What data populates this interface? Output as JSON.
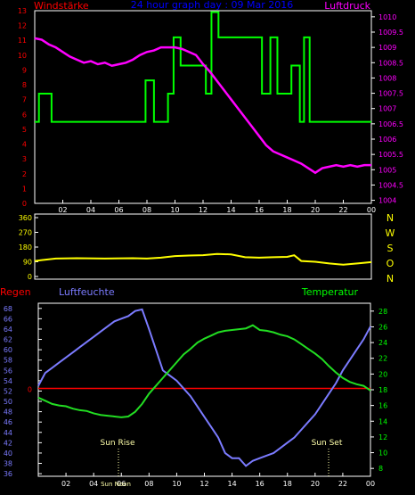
{
  "header": {
    "left": "Windstärke",
    "center": "24 hour graph day : 09 Mar 2016",
    "right": "Luftdruck"
  },
  "lower_header": {
    "left": "Regen",
    "center": "Luftfeuchte",
    "right": "Temperatur"
  },
  "markers": {
    "sunrise": "Sun Rise",
    "sunset": "Sun Set",
    "noon": "Sun Noon"
  },
  "colors": {
    "background": "#000000",
    "axis": "#ffffff",
    "wind": "#00ff00",
    "pressure": "#ff00ff",
    "direction": "#ffff00",
    "humidity": "#7b7bff",
    "temperature": "#22dd22",
    "rain": "#ff0000",
    "header": "#ff0000",
    "header_center": "#0000ff",
    "right_label": "#ff00ff",
    "dir_letters": "#ffff00",
    "hum_ticks": "#7b7bff",
    "temp_ticks": "#00ff00"
  },
  "chart_data": [
    {
      "type": "line",
      "title": "24 hour graph day : 09 Mar 2016",
      "x_ticks": [
        "02",
        "04",
        "06",
        "08",
        "10",
        "12",
        "14",
        "16",
        "18",
        "20",
        "22",
        "00"
      ],
      "xlim": [
        0,
        24
      ],
      "y_left": {
        "label": "Windstärke",
        "ticks": [
          "0",
          "1",
          "2",
          "3",
          "4",
          "5",
          "6",
          "7",
          "8",
          "9",
          "10",
          "11",
          "12",
          "13"
        ],
        "ylim": [
          0,
          13
        ]
      },
      "y_right": {
        "label": "Luftdruck",
        "ticks": [
          "1004",
          "1004.5",
          "1005",
          "1005.5",
          "1006",
          "1006.5",
          "1007",
          "1007.5",
          "1008",
          "1008.5",
          "1009",
          "1009.5",
          "1010"
        ],
        "ylim": [
          1003.9,
          1010.2
        ]
      },
      "series": [
        {
          "name": "Windstärke",
          "axis": "left",
          "step": true,
          "x": [
            0.0,
            0.3,
            1.2,
            4.9,
            7.9,
            8.5,
            9.5,
            9.9,
            10.4,
            11.3,
            12.2,
            12.6,
            13.1,
            13.5,
            16.2,
            16.8,
            17.3,
            18.3,
            18.9,
            19.2,
            19.6,
            20.0,
            24.0
          ],
          "y": [
            5.5,
            7.4,
            5.5,
            5.5,
            8.3,
            5.5,
            7.4,
            11.2,
            9.3,
            9.3,
            7.4,
            12.9,
            11.2,
            11.2,
            7.4,
            11.2,
            7.4,
            9.3,
            5.5,
            11.2,
            5.5,
            5.5,
            5.5
          ]
        },
        {
          "name": "Luftdruck",
          "axis": "right",
          "x": [
            0.0,
            0.5,
            1.0,
            1.5,
            2.0,
            2.5,
            3.0,
            3.5,
            4.0,
            4.5,
            5.0,
            5.5,
            6.0,
            6.5,
            7.0,
            7.5,
            8.0,
            8.5,
            9.0,
            9.5,
            10.0,
            10.5,
            11.0,
            11.5,
            12.0,
            12.5,
            13.0,
            13.5,
            14.0,
            14.5,
            15.0,
            15.5,
            16.0,
            16.5,
            17.0,
            17.5,
            18.0,
            18.5,
            19.0,
            19.5,
            20.0,
            20.5,
            21.0,
            21.5,
            22.0,
            22.5,
            23.0,
            23.5,
            24.0
          ],
          "y": [
            1009.3,
            1009.25,
            1009.1,
            1009.0,
            1008.85,
            1008.7,
            1008.6,
            1008.5,
            1008.55,
            1008.45,
            1008.5,
            1008.4,
            1008.45,
            1008.5,
            1008.6,
            1008.75,
            1008.85,
            1008.9,
            1009.0,
            1009.0,
            1009.0,
            1008.95,
            1008.85,
            1008.75,
            1008.45,
            1008.2,
            1007.9,
            1007.6,
            1007.3,
            1007.0,
            1006.7,
            1006.4,
            1006.1,
            1005.8,
            1005.6,
            1005.5,
            1005.4,
            1005.3,
            1005.2,
            1005.05,
            1004.9,
            1005.05,
            1005.1,
            1005.15,
            1005.1,
            1005.15,
            1005.1,
            1005.15,
            1005.15
          ]
        }
      ]
    },
    {
      "type": "line",
      "title": "",
      "x_ticks": [
        "02",
        "04",
        "06",
        "08",
        "10",
        "12",
        "14",
        "16",
        "18",
        "20",
        "22",
        "00"
      ],
      "xlim": [
        0,
        24
      ],
      "y_left": {
        "label": "",
        "ticks": [
          "0",
          "90",
          "180",
          "270",
          "360"
        ],
        "ylim": [
          0,
          360
        ]
      },
      "direction_letters": [
        "N",
        "W",
        "S",
        "O",
        "N"
      ],
      "series": [
        {
          "name": "",
          "axis": "left",
          "x": [
            0.0,
            0.5,
            1.5,
            3.0,
            5.0,
            7.0,
            8.0,
            9.0,
            10.0,
            11.0,
            12.0,
            13.0,
            14.0,
            15.0,
            16.0,
            17.0,
            18.0,
            18.5,
            19.0,
            20.0,
            21.0,
            22.0,
            23.0,
            24.0
          ],
          "y": [
            95,
            100,
            110,
            112,
            110,
            112,
            110,
            115,
            125,
            128,
            130,
            138,
            135,
            118,
            115,
            118,
            120,
            130,
            95,
            90,
            80,
            72,
            80,
            88
          ]
        }
      ]
    },
    {
      "type": "line",
      "title": "",
      "x_ticks": [
        "02",
        "04",
        "06",
        "08",
        "10",
        "12",
        "14",
        "16",
        "18",
        "20",
        "22",
        "00"
      ],
      "xlim": [
        0,
        24
      ],
      "y_left": {
        "label": "Luftfeuchte",
        "ticks": [
          "36",
          "38",
          "40",
          "42",
          "44",
          "46",
          "48",
          "50",
          "52",
          "54",
          "56",
          "58",
          "60",
          "62",
          "64",
          "66",
          "68"
        ],
        "ylim": [
          35.5,
          69.0
        ]
      },
      "y_right": {
        "label": "Temperatur",
        "ticks": [
          "8",
          "10",
          "12",
          "14",
          "16",
          "18",
          "20",
          "22",
          "24",
          "26",
          "28"
        ],
        "ylim": [
          7.0,
          29.0
        ]
      },
      "rain": {
        "name": "Regen",
        "value": "0"
      },
      "series": [
        {
          "name": "Luftfeuchte",
          "axis": "left",
          "x": [
            0.0,
            0.5,
            1.0,
            1.5,
            2.0,
            2.5,
            3.0,
            3.5,
            4.0,
            4.5,
            5.0,
            5.5,
            6.0,
            6.5,
            7.0,
            7.5,
            8.0,
            8.5,
            9.0,
            9.5,
            10.0,
            10.5,
            11.0,
            11.5,
            12.0,
            12.5,
            13.0,
            13.5,
            14.0,
            14.5,
            15.0,
            15.5,
            16.0,
            16.5,
            17.0,
            17.5,
            18.0,
            18.5,
            19.0,
            19.5,
            20.0,
            20.5,
            21.0,
            21.5,
            22.0,
            22.5,
            23.0,
            23.5,
            24.0
          ],
          "y": [
            53,
            55.5,
            56.5,
            57.5,
            58.5,
            59.5,
            60.5,
            61.5,
            62.5,
            63.5,
            64.5,
            65.5,
            66,
            66.5,
            67.5,
            67.8,
            64,
            60,
            56,
            55,
            54,
            52.5,
            51,
            49,
            47,
            45,
            43,
            40,
            39,
            39,
            37.5,
            38.5,
            39,
            39.5,
            40,
            41,
            42,
            43,
            44.5,
            46,
            47.5,
            49.5,
            51.5,
            53.5,
            56,
            58,
            60,
            62,
            64.5
          ]
        },
        {
          "name": "Temperatur",
          "axis": "right",
          "x": [
            0.0,
            0.5,
            1.0,
            1.5,
            2.0,
            2.5,
            3.0,
            3.5,
            4.0,
            4.5,
            5.0,
            5.5,
            6.0,
            6.5,
            7.0,
            7.5,
            8.0,
            8.5,
            9.0,
            9.5,
            10.0,
            10.5,
            11.0,
            11.5,
            12.0,
            12.5,
            13.0,
            13.5,
            14.0,
            14.5,
            15.0,
            15.5,
            16.0,
            16.5,
            17.0,
            17.5,
            18.0,
            18.5,
            19.0,
            19.5,
            20.0,
            20.5,
            21.0,
            21.5,
            22.0,
            22.5,
            23.0,
            23.5,
            24.0
          ],
          "y": [
            17,
            16.6,
            16.2,
            16,
            15.9,
            15.6,
            15.4,
            15.3,
            15,
            14.8,
            14.7,
            14.6,
            14.5,
            14.6,
            15.2,
            16.2,
            17.5,
            18.5,
            19.5,
            20.5,
            21.5,
            22.5,
            23.2,
            24,
            24.5,
            24.9,
            25.3,
            25.5,
            25.6,
            25.7,
            25.8,
            26.2,
            25.6,
            25.5,
            25.3,
            25,
            24.8,
            24.4,
            23.8,
            23.2,
            22.6,
            21.9,
            21,
            20.2,
            19.5,
            19,
            18.7,
            18.5,
            17.9
          ]
        }
      ]
    }
  ]
}
